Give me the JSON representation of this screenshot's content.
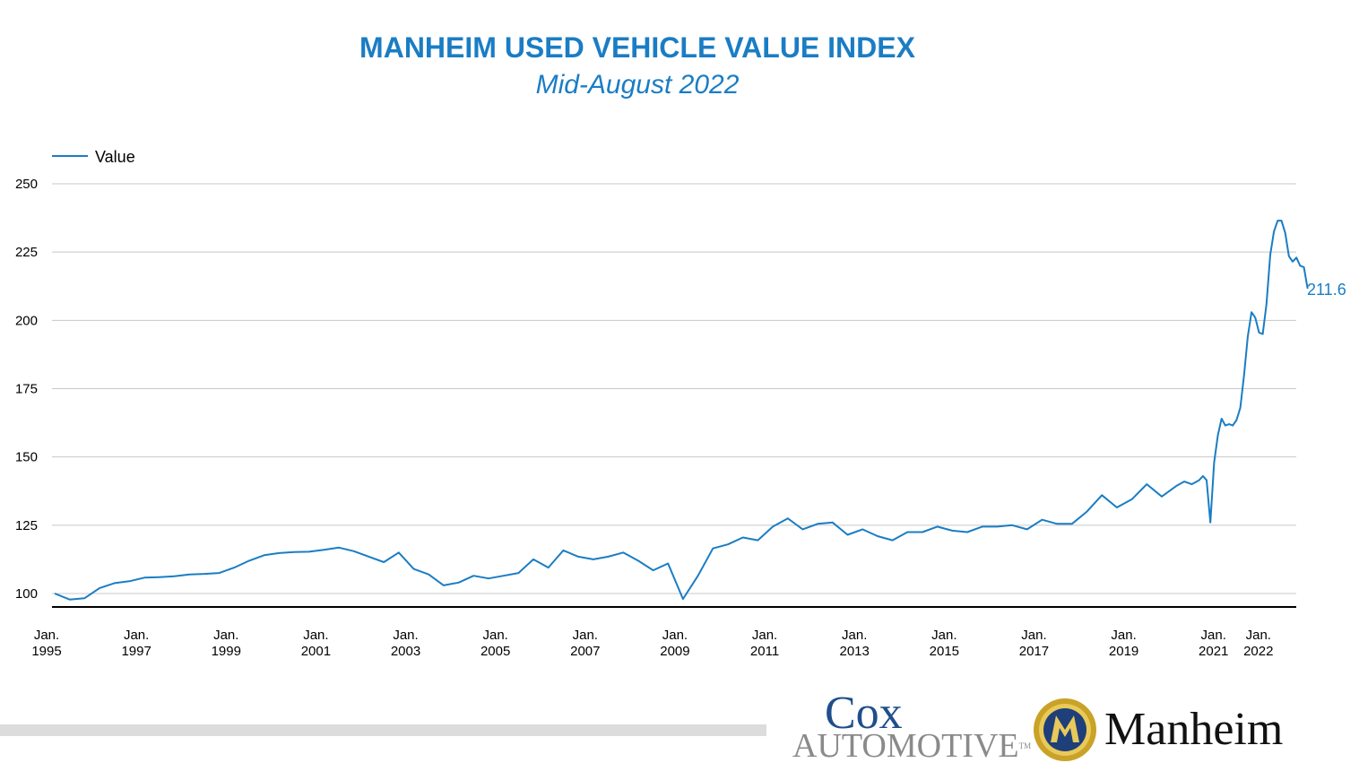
{
  "colors": {
    "title": "#1a7dc4",
    "line": "#1a7dc4",
    "grid": "#c8c8c8",
    "axis": "#000000"
  },
  "chart_data": {
    "type": "line",
    "title": "MANHEIM USED VEHICLE VALUE INDEX",
    "subtitle": "Mid-August 2022",
    "xlabel": "",
    "ylabel": "",
    "ylim": [
      95,
      250
    ],
    "yticks": [
      100,
      125,
      150,
      175,
      200,
      225,
      250
    ],
    "xlim": [
      "1995-01",
      "2022-08"
    ],
    "xticks": [
      {
        "date": "1995-01",
        "line1": "Jan.",
        "line2": "1995"
      },
      {
        "date": "1997-01",
        "line1": "Jan.",
        "line2": "1997"
      },
      {
        "date": "1999-01",
        "line1": "Jan.",
        "line2": "1999"
      },
      {
        "date": "2001-01",
        "line1": "Jan.",
        "line2": "2001"
      },
      {
        "date": "2003-01",
        "line1": "Jan.",
        "line2": "2003"
      },
      {
        "date": "2005-01",
        "line1": "Jan.",
        "line2": "2005"
      },
      {
        "date": "2007-01",
        "line1": "Jan.",
        "line2": "2007"
      },
      {
        "date": "2009-01",
        "line1": "Jan.",
        "line2": "2009"
      },
      {
        "date": "2011-01",
        "line1": "Jan.",
        "line2": "2011"
      },
      {
        "date": "2013-01",
        "line1": "Jan.",
        "line2": "2013"
      },
      {
        "date": "2015-01",
        "line1": "Jan.",
        "line2": "2015"
      },
      {
        "date": "2017-01",
        "line1": "Jan.",
        "line2": "2017"
      },
      {
        "date": "2019-01",
        "line1": "Jan.",
        "line2": "2019"
      },
      {
        "date": "2021-01",
        "line1": "Jan.",
        "line2": "2021"
      },
      {
        "date": "2022-01",
        "line1": "Jan.",
        "line2": "2022"
      }
    ],
    "grid": true,
    "legend": {
      "position": "top-left",
      "entries": [
        "Value"
      ]
    },
    "end_label": "211.6",
    "series": [
      {
        "name": "Value",
        "points": [
          [
            "1995-01",
            100.0
          ],
          [
            "1995-05",
            97.8
          ],
          [
            "1995-09",
            98.3
          ],
          [
            "1996-01",
            102.0
          ],
          [
            "1996-05",
            103.8
          ],
          [
            "1996-09",
            104.5
          ],
          [
            "1997-01",
            105.8
          ],
          [
            "1997-05",
            106.0
          ],
          [
            "1997-09",
            106.3
          ],
          [
            "1998-01",
            107.0
          ],
          [
            "1998-05",
            107.2
          ],
          [
            "1998-09",
            107.5
          ],
          [
            "1999-01",
            109.5
          ],
          [
            "1999-05",
            112.0
          ],
          [
            "1999-09",
            114.0
          ],
          [
            "2000-01",
            114.8
          ],
          [
            "2000-05",
            115.2
          ],
          [
            "2000-09",
            115.3
          ],
          [
            "2001-01",
            116.0
          ],
          [
            "2001-05",
            116.8
          ],
          [
            "2001-09",
            115.5
          ],
          [
            "2002-01",
            113.5
          ],
          [
            "2002-05",
            111.5
          ],
          [
            "2002-09",
            115.0
          ],
          [
            "2003-01",
            109.0
          ],
          [
            "2003-05",
            107.0
          ],
          [
            "2003-09",
            103.0
          ],
          [
            "2004-01",
            104.0
          ],
          [
            "2004-05",
            106.5
          ],
          [
            "2004-09",
            105.5
          ],
          [
            "2005-01",
            106.5
          ],
          [
            "2005-05",
            107.5
          ],
          [
            "2005-09",
            112.5
          ],
          [
            "2006-01",
            109.5
          ],
          [
            "2006-05",
            115.8
          ],
          [
            "2006-09",
            113.5
          ],
          [
            "2007-01",
            112.5
          ],
          [
            "2007-05",
            113.5
          ],
          [
            "2007-09",
            115.0
          ],
          [
            "2008-01",
            112.0
          ],
          [
            "2008-05",
            108.5
          ],
          [
            "2008-09",
            111.0
          ],
          [
            "2009-01",
            98.0
          ],
          [
            "2009-05",
            106.5
          ],
          [
            "2009-09",
            116.5
          ],
          [
            "2010-01",
            118.0
          ],
          [
            "2010-05",
            120.5
          ],
          [
            "2010-09",
            119.5
          ],
          [
            "2011-01",
            124.5
          ],
          [
            "2011-05",
            127.5
          ],
          [
            "2011-09",
            123.5
          ],
          [
            "2012-01",
            125.5
          ],
          [
            "2012-05",
            126.0
          ],
          [
            "2012-09",
            121.5
          ],
          [
            "2013-01",
            123.5
          ],
          [
            "2013-05",
            121.0
          ],
          [
            "2013-09",
            119.5
          ],
          [
            "2014-01",
            122.5
          ],
          [
            "2014-05",
            122.5
          ],
          [
            "2014-09",
            124.5
          ],
          [
            "2015-01",
            123.0
          ],
          [
            "2015-05",
            122.5
          ],
          [
            "2015-09",
            124.5
          ],
          [
            "2016-01",
            124.5
          ],
          [
            "2016-05",
            125.0
          ],
          [
            "2016-09",
            123.5
          ],
          [
            "2017-01",
            127.0
          ],
          [
            "2017-05",
            125.5
          ],
          [
            "2017-09",
            125.5
          ],
          [
            "2018-01",
            130.0
          ],
          [
            "2018-05",
            136.0
          ],
          [
            "2018-09",
            131.5
          ],
          [
            "2019-01",
            134.5
          ],
          [
            "2019-05",
            140.0
          ],
          [
            "2019-09",
            135.5
          ],
          [
            "2020-01",
            139.5
          ],
          [
            "2020-03",
            141.0
          ],
          [
            "2020-05",
            140.0
          ],
          [
            "2020-07",
            141.5
          ],
          [
            "2020-08",
            143.0
          ],
          [
            "2020-09",
            141.5
          ],
          [
            "2020-10",
            126.0
          ],
          [
            "2020-11",
            148.0
          ],
          [
            "2020-12",
            158.0
          ],
          [
            "2021-01",
            164.0
          ],
          [
            "2021-02",
            161.5
          ],
          [
            "2021-03",
            162.0
          ],
          [
            "2021-04",
            161.5
          ],
          [
            "2021-05",
            163.5
          ],
          [
            "2021-06",
            168.0
          ],
          [
            "2021-07",
            180.0
          ],
          [
            "2021-08",
            194.0
          ],
          [
            "2021-09",
            203.0
          ],
          [
            "2021-10",
            201.0
          ],
          [
            "2021-11",
            195.5
          ],
          [
            "2021-12",
            195.0
          ],
          [
            "2022-01",
            206.0
          ],
          [
            "2022-02",
            224.0
          ],
          [
            "2022-03",
            232.5
          ],
          [
            "2022-04",
            236.5
          ],
          [
            "2022-05",
            236.5
          ],
          [
            "2022-06",
            232.0
          ],
          [
            "2022-07",
            223.5
          ],
          [
            "2022-08",
            221.5
          ],
          [
            "2022-09",
            223.0
          ],
          [
            "2022-10",
            220.0
          ],
          [
            "2022-11",
            219.5
          ],
          [
            "2022-12",
            211.6
          ]
        ]
      }
    ]
  },
  "logos": {
    "cox_word": "Cox",
    "automotive_word": "AUTOMOTIVE",
    "tm": "TM",
    "manheim_word": "Manheim"
  }
}
